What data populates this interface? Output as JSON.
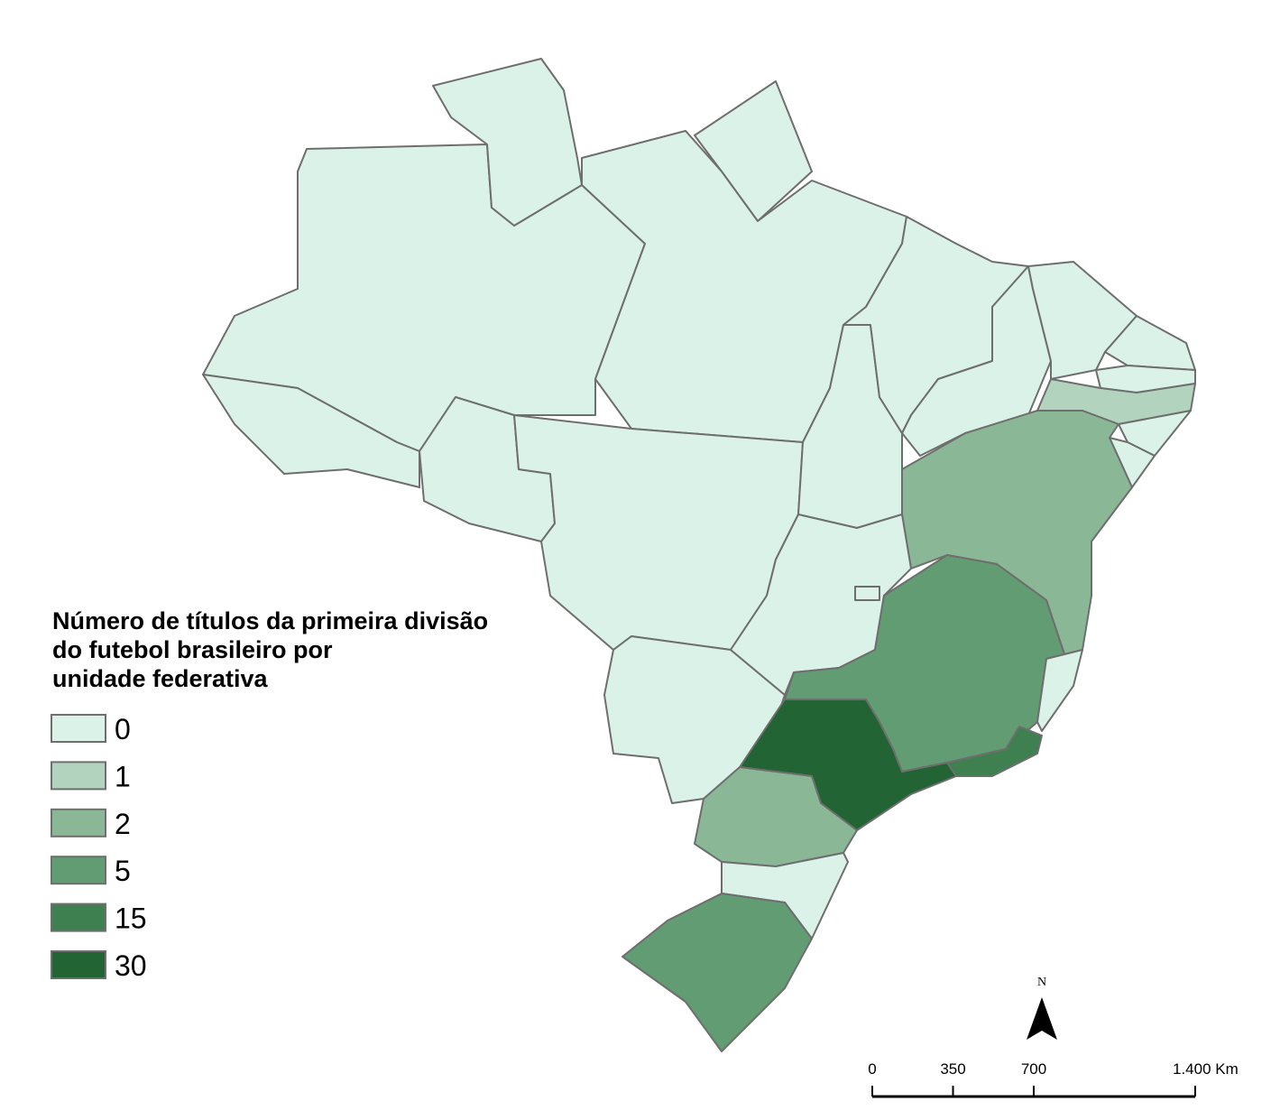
{
  "legend": {
    "title": [
      "Número de títulos da primeira divisão",
      "do futebol brasileiro por",
      "unidade federativa"
    ],
    "items": [
      {
        "value": 0,
        "color": "#dbf2e8"
      },
      {
        "value": 1,
        "color": "#b2d4bf"
      },
      {
        "value": 2,
        "color": "#8ab896"
      },
      {
        "value": 5,
        "color": "#629c72"
      },
      {
        "value": 15,
        "color": "#3f8050"
      },
      {
        "value": 30,
        "color": "#236434"
      }
    ]
  },
  "north": "N",
  "scale": {
    "range": [
      0,
      1400
    ],
    "ticks": [
      0,
      350,
      700,
      {
        "value": 1400,
        "label": "1.400 Km"
      }
    ]
  }
}
